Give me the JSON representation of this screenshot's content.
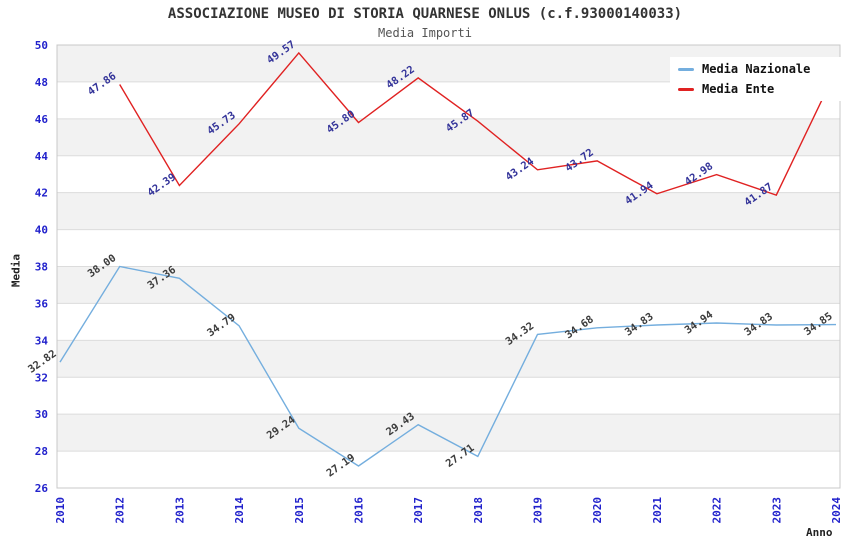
{
  "chart_data": {
    "type": "line",
    "title": "ASSOCIAZIONE MUSEO DI STORIA QUARNESE ONLUS (c.f.93000140033)",
    "subtitle": "Media Importi",
    "xlabel": "Anno",
    "ylabel": "Media",
    "categories": [
      "2010",
      "2012",
      "2013",
      "2014",
      "2015",
      "2016",
      "2017",
      "2018",
      "2019",
      "2020",
      "2021",
      "2022",
      "2023",
      "2024"
    ],
    "series": [
      {
        "name": "Media Nazionale",
        "color": "#74aede",
        "label_color": "#3c3c3c",
        "values": [
          32.82,
          38.0,
          37.36,
          34.79,
          29.24,
          27.19,
          29.43,
          27.71,
          34.32,
          34.68,
          34.83,
          34.94,
          34.83,
          34.85
        ]
      },
      {
        "name": "Media Ente",
        "color": "#e02222",
        "label_color": "#333399",
        "values": [
          null,
          47.86,
          42.39,
          45.73,
          49.57,
          45.8,
          48.22,
          45.87,
          43.24,
          43.72,
          41.94,
          42.98,
          41.87,
          48.61
        ]
      }
    ],
    "ylim": [
      26,
      50
    ],
    "ytick_step": 2,
    "grid": true,
    "legend_position": "top-right",
    "colors": {
      "band": "#f2f2f2",
      "grid": "#dcdcdc",
      "border": "#c8c8c8",
      "tick": "#2222cc"
    }
  }
}
